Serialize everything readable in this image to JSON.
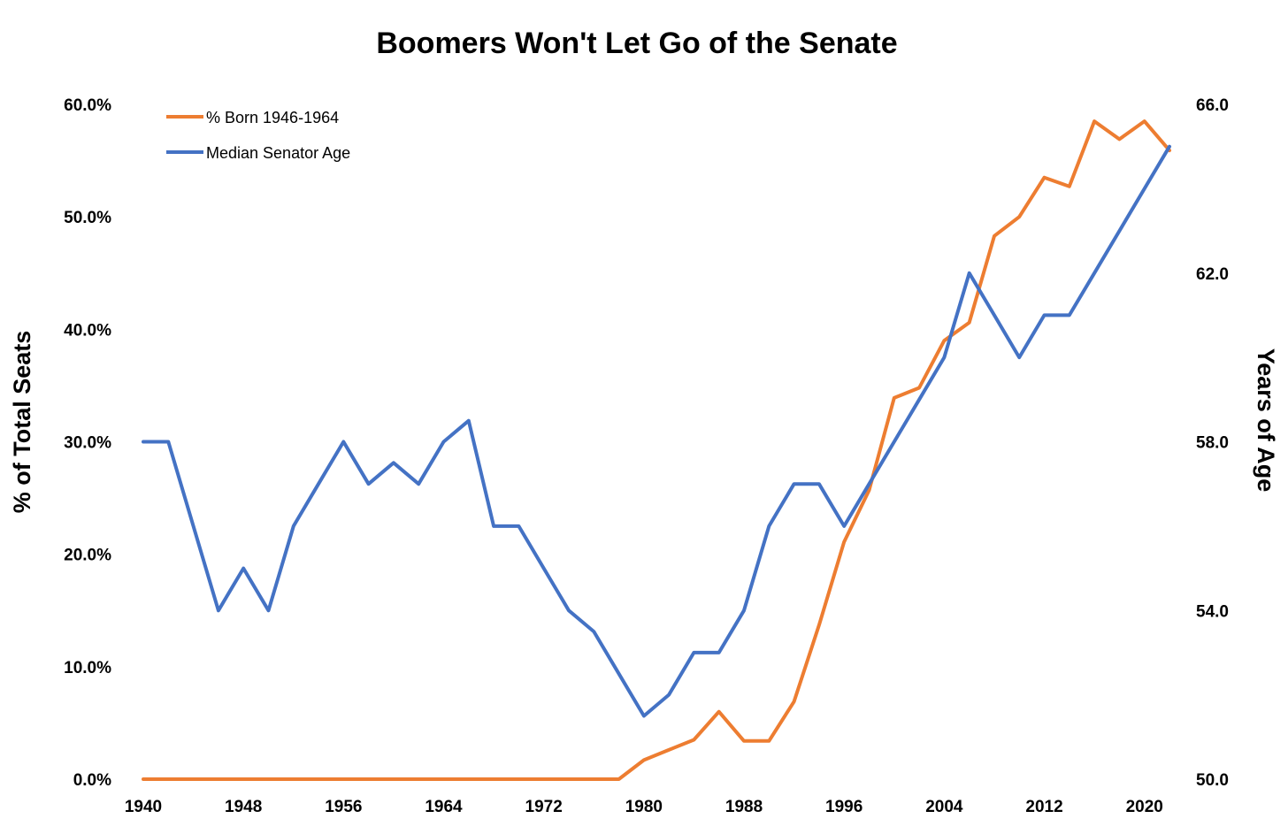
{
  "chart_data": {
    "type": "line",
    "title": "Boomers Won't Let Go of the Senate",
    "ylabel": "% of Total Seats",
    "y2label": "Years of Age",
    "xlabel": "",
    "xlim": [
      1940,
      2022
    ],
    "ylim": [
      0,
      60
    ],
    "y2lim": [
      50,
      66
    ],
    "x_ticks": [
      "1940",
      "1948",
      "1956",
      "1964",
      "1972",
      "1980",
      "1988",
      "1996",
      "2004",
      "2012",
      "2020"
    ],
    "y_ticks": [
      "0.0%",
      "10.0%",
      "20.0%",
      "30.0%",
      "40.0%",
      "50.0%",
      "60.0%"
    ],
    "y2_ticks": [
      "50.0",
      "54.0",
      "58.0",
      "62.0",
      "66.0"
    ],
    "grid": false,
    "legend_position": "top-left",
    "x": [
      1940,
      1942,
      1944,
      1946,
      1948,
      1950,
      1952,
      1954,
      1956,
      1958,
      1960,
      1962,
      1964,
      1966,
      1968,
      1970,
      1972,
      1974,
      1976,
      1978,
      1980,
      1982,
      1984,
      1986,
      1988,
      1990,
      1992,
      1994,
      1996,
      1998,
      2000,
      2002,
      2004,
      2006,
      2008,
      2010,
      2012,
      2014,
      2016,
      2018,
      2020,
      2022
    ],
    "series": [
      {
        "name": "% Born 1946-1964",
        "axis": "left",
        "color": "#ED7D31",
        "values": [
          0,
          0,
          0,
          0,
          0,
          0,
          0,
          0,
          0,
          0,
          0,
          0,
          0,
          0,
          0,
          0,
          0,
          0,
          0,
          0,
          1.7,
          2.6,
          3.5,
          6.0,
          3.4,
          3.4,
          6.9,
          13.7,
          21.1,
          25.7,
          33.9,
          34.8,
          39.0,
          40.6,
          48.3,
          50.0,
          53.5,
          52.7,
          58.5,
          56.9,
          58.5,
          55.9
        ]
      },
      {
        "name": "Median Senator Age",
        "axis": "right",
        "color": "#4472C4",
        "values": [
          58,
          58,
          56,
          54,
          55,
          54,
          56,
          57,
          58,
          57,
          57.5,
          57,
          58,
          58.5,
          56,
          56,
          55,
          54,
          53.5,
          52.5,
          51.5,
          52,
          53,
          53,
          54,
          56,
          57,
          57,
          56,
          57,
          58,
          59,
          60,
          62,
          61,
          60,
          61,
          61,
          62,
          63,
          64,
          65
        ]
      }
    ]
  }
}
